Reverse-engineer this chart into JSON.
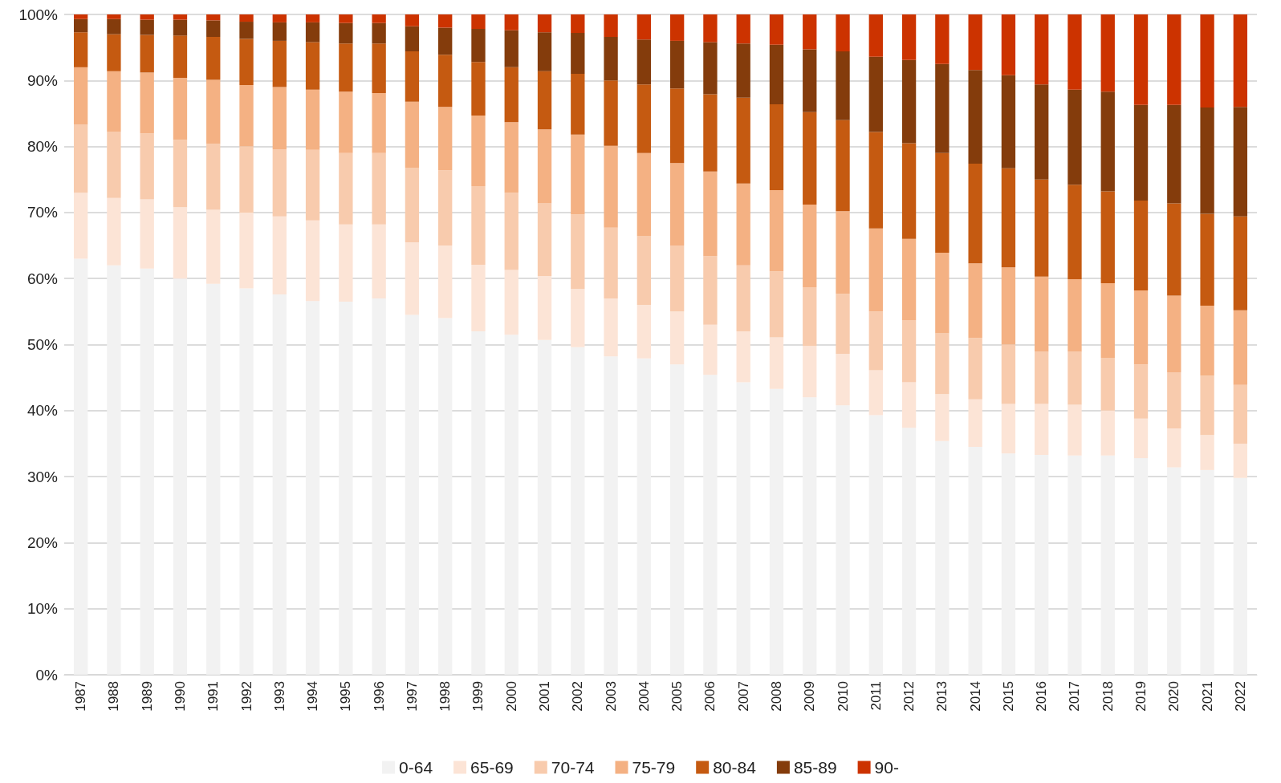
{
  "chart_data": {
    "type": "bar",
    "stacked": true,
    "categories": [
      "1987",
      "1988",
      "1989",
      "1990",
      "1991",
      "1992",
      "1993",
      "1994",
      "1995",
      "1996",
      "1997",
      "1998",
      "1999",
      "2000",
      "2001",
      "2002",
      "2003",
      "2004",
      "2005",
      "2006",
      "2007",
      "2008",
      "2009",
      "2010",
      "2011",
      "2012",
      "2013",
      "2014",
      "2015",
      "2016",
      "2017",
      "2018",
      "2019",
      "2020",
      "2021",
      "2022"
    ],
    "series": [
      {
        "name": "0-64",
        "color": "#f2f2f2",
        "values": [
          63,
          62,
          61.5,
          60,
          59.2,
          58.5,
          57.6,
          56.6,
          56.5,
          57,
          54.5,
          54,
          52,
          51.5,
          50.7,
          49.6,
          48.2,
          47.9,
          47,
          45.4,
          44.3,
          43.3,
          42,
          40.8,
          39.3,
          37.4,
          35.4,
          34.5,
          33.5,
          33.3,
          33.2,
          33.2,
          32.8,
          31.4,
          31,
          29.8
        ]
      },
      {
        "name": "65-69",
        "color": "#fce4d6",
        "values": [
          10,
          10.2,
          10.5,
          10.8,
          11.2,
          11.5,
          11.8,
          12.2,
          11.7,
          11.2,
          11,
          11,
          10.1,
          9.8,
          9.7,
          8.8,
          8.8,
          8.1,
          8,
          7.6,
          7.7,
          7.8,
          7.8,
          7.8,
          6.8,
          6.9,
          7.1,
          7.2,
          7.5,
          7.7,
          7.7,
          6.8,
          6,
          5.9,
          5.3,
          5.2
        ]
      },
      {
        "name": "70-74",
        "color": "#f8cbad",
        "values": [
          10.3,
          10,
          10,
          10.2,
          10,
          10,
          10.2,
          10.7,
          10.8,
          10.8,
          11.3,
          11.4,
          11.9,
          11.7,
          11,
          11.3,
          10.7,
          10.4,
          10,
          10.4,
          10,
          10,
          8.9,
          9.1,
          8.9,
          9.4,
          9.2,
          9.3,
          9,
          7.9,
          8,
          8,
          8.2,
          8.5,
          9,
          8.9
        ]
      },
      {
        "name": "75-79",
        "color": "#f4b183",
        "values": [
          8.7,
          9.2,
          9.2,
          9.4,
          9.7,
          9.3,
          9.4,
          9.1,
          9.3,
          9.1,
          10,
          9.6,
          10.7,
          10.7,
          11.2,
          12.1,
          12.4,
          12.6,
          12.5,
          12.8,
          12.4,
          12.3,
          12.5,
          12.5,
          12.6,
          12.3,
          12.2,
          11.3,
          11.7,
          11.4,
          11,
          11.3,
          11.2,
          11.6,
          10.6,
          11.3
        ]
      },
      {
        "name": "80-84",
        "color": "#c55a11",
        "values": [
          5.3,
          5.6,
          5.7,
          6.4,
          6.5,
          7,
          7,
          7.2,
          7.3,
          7.5,
          7.6,
          7.9,
          8.1,
          8.3,
          8.8,
          9.2,
          9.9,
          10.4,
          11.3,
          11.7,
          13,
          13,
          14,
          13.8,
          14.6,
          14.5,
          15.1,
          15.1,
          15,
          14.7,
          14.3,
          13.9,
          13.6,
          14,
          13.9,
          14.2
        ]
      },
      {
        "name": "85-89",
        "color": "#843c0c",
        "values": [
          2,
          2.3,
          2.3,
          2.4,
          2.5,
          2.6,
          2.8,
          3,
          3.1,
          3.1,
          3.8,
          4.1,
          5,
          5.6,
          5.9,
          6.2,
          6.6,
          6.8,
          7.2,
          7.9,
          8.2,
          9,
          9.5,
          10.4,
          11.4,
          12.6,
          13.5,
          14.2,
          14.1,
          14.4,
          14.4,
          15.1,
          14.5,
          14.9,
          16.1,
          16.6
        ]
      },
      {
        "name": "90-",
        "color": "#cc3300",
        "values": [
          0.7,
          0.7,
          0.8,
          0.8,
          0.9,
          1.1,
          1.2,
          1.2,
          1.3,
          1.3,
          1.8,
          2,
          2.2,
          2.4,
          2.7,
          2.8,
          3.4,
          3.8,
          4,
          4.2,
          4.4,
          4.6,
          5.3,
          5.6,
          6.4,
          6.9,
          7.5,
          8.4,
          9.2,
          10.6,
          11.4,
          11.7,
          13.7,
          13.7,
          14.1,
          14
        ]
      }
    ],
    "ylim": [
      0,
      100
    ],
    "yticks": [
      {
        "value": 0,
        "label": "0%"
      },
      {
        "value": 10,
        "label": "10%"
      },
      {
        "value": 20,
        "label": "20%"
      },
      {
        "value": 30,
        "label": "30%"
      },
      {
        "value": 40,
        "label": "40%"
      },
      {
        "value": 50,
        "label": "50%"
      },
      {
        "value": 60,
        "label": "60%"
      },
      {
        "value": 70,
        "label": "70%"
      },
      {
        "value": 80,
        "label": "80%"
      },
      {
        "value": 90,
        "label": "90%"
      },
      {
        "value": 100,
        "label": "100%"
      }
    ],
    "grid": "y",
    "legend": "bottom"
  }
}
